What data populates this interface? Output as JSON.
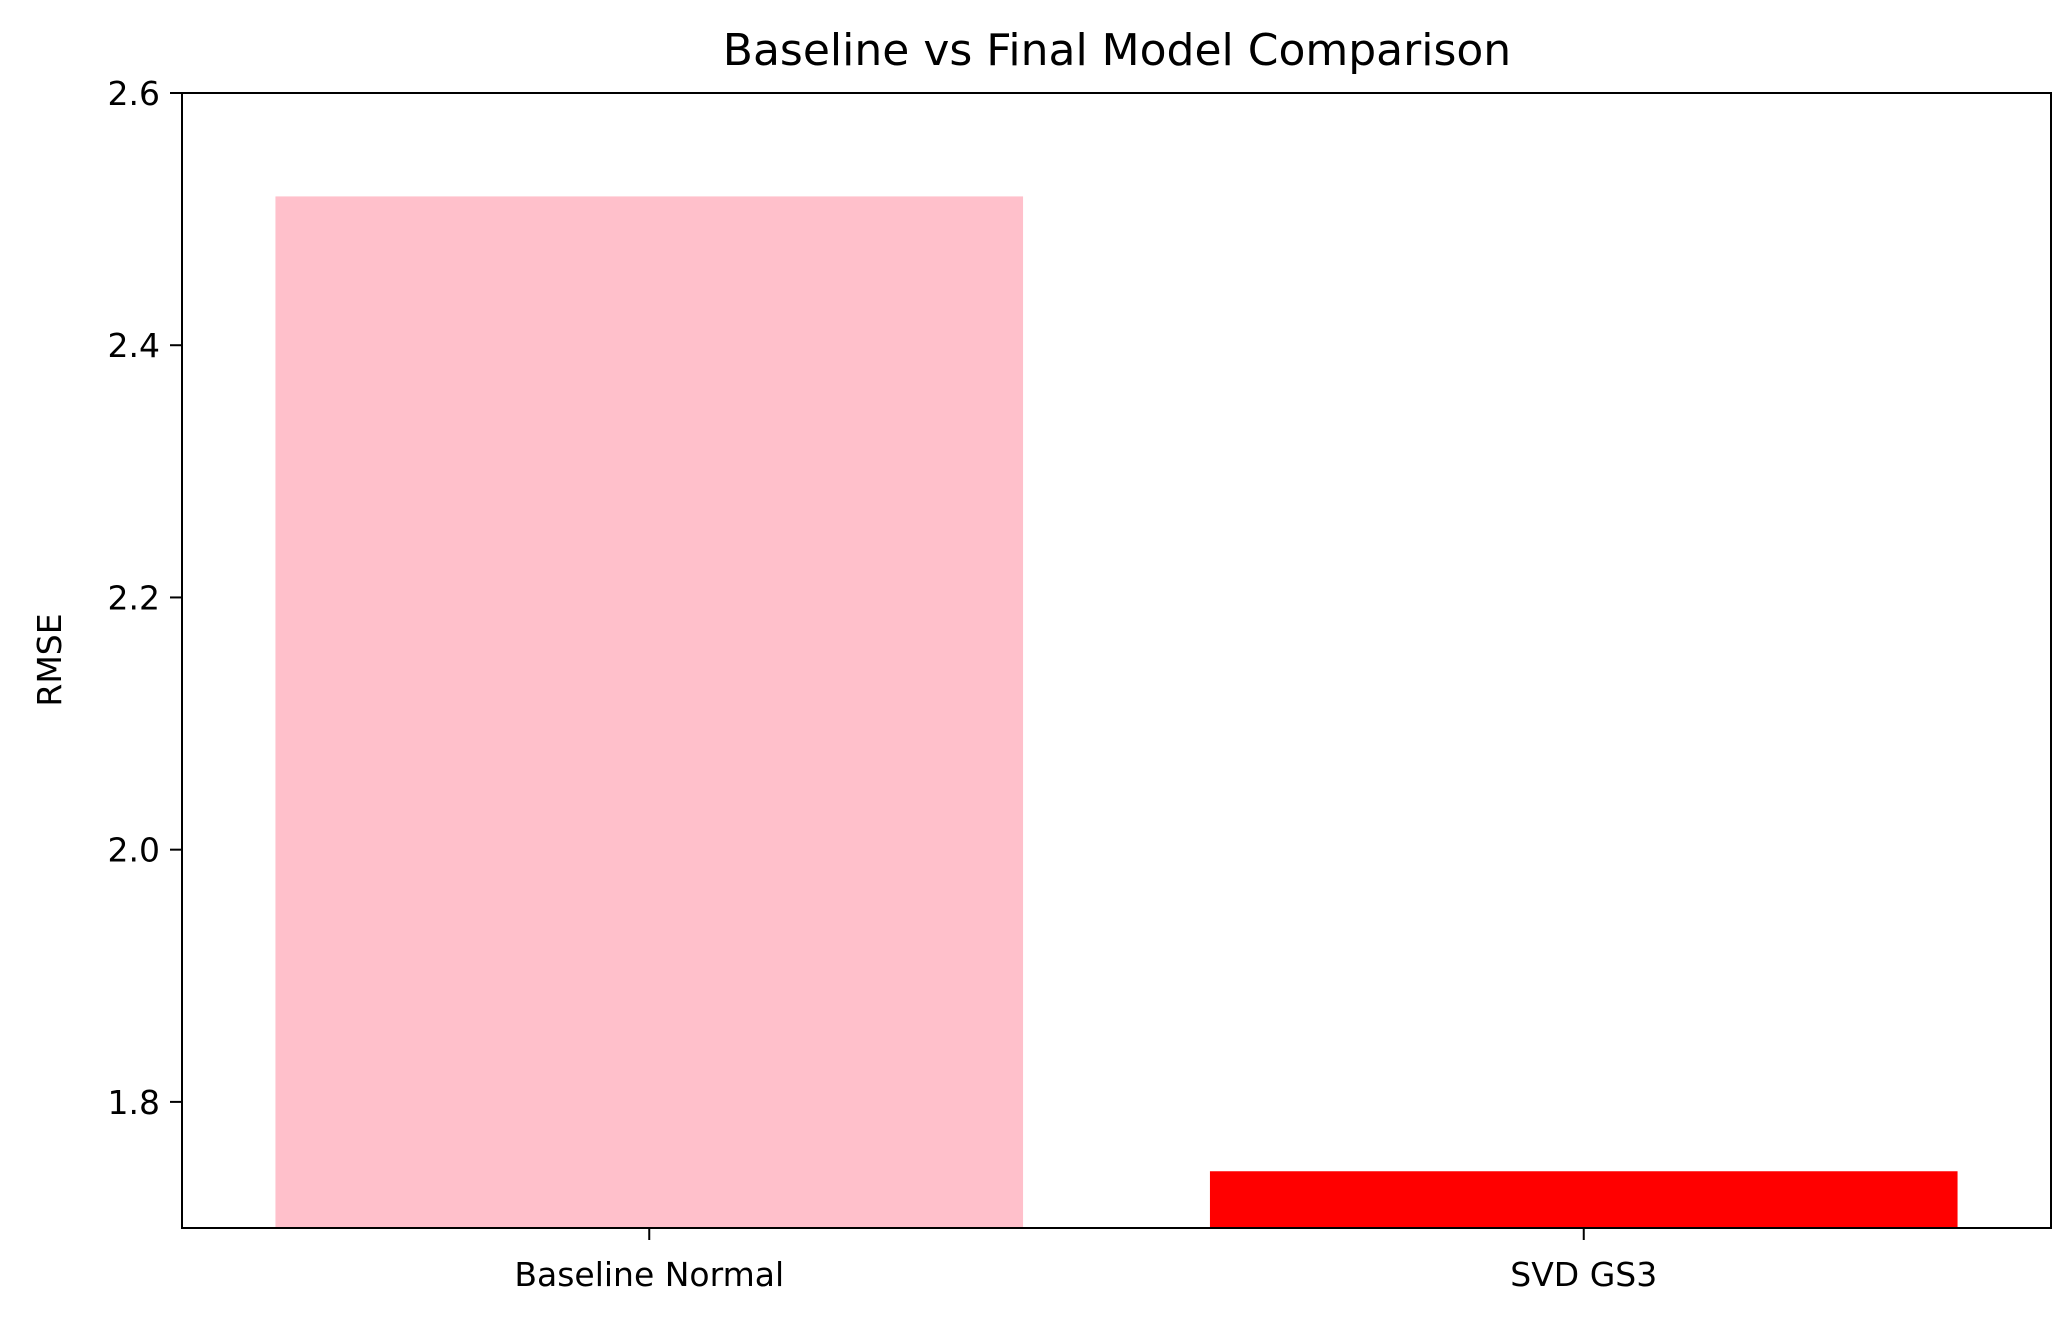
{
  "chart_data": {
    "type": "bar",
    "title": "Baseline vs Final Model Comparison",
    "xlabel": "",
    "ylabel": "RMSE",
    "categories": [
      "Baseline Normal",
      "SVD GS3"
    ],
    "values": [
      2.518,
      1.745
    ],
    "colors": [
      "#ffc0cb",
      "#ff0000"
    ],
    "ylim": [
      1.7,
      2.6
    ],
    "yticks": [
      1.8,
      2.0,
      2.2,
      2.4,
      2.6
    ],
    "ytick_labels": [
      "1.8",
      "2.0",
      "2.2",
      "2.4",
      "2.6"
    ],
    "grid": false,
    "legend": "none"
  }
}
